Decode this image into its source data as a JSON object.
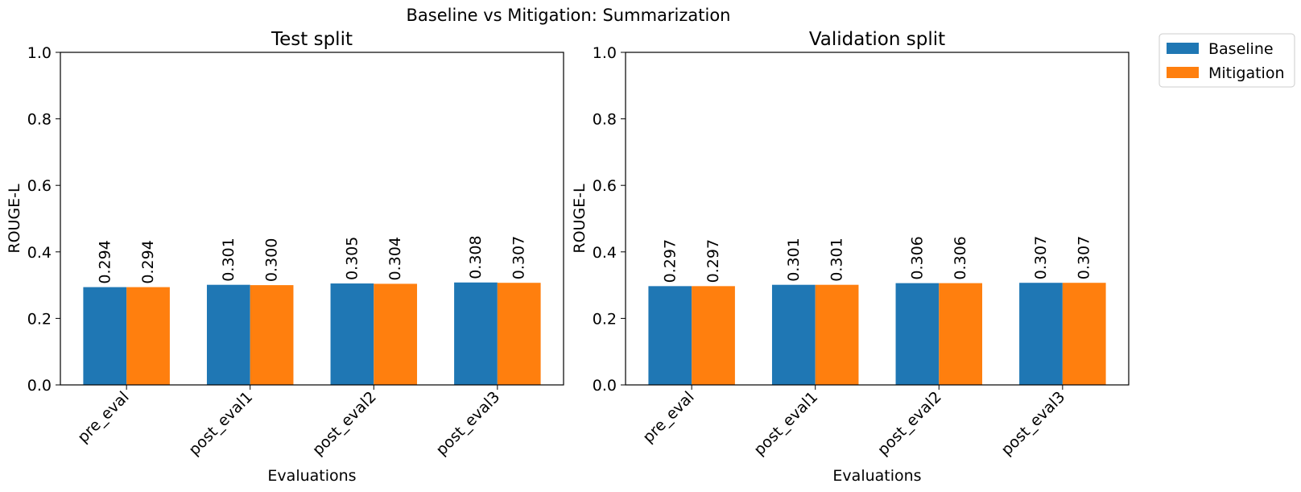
{
  "figure_title": "Baseline vs Mitigation: Summarization",
  "legend": {
    "placement": "top-right, outside plot area",
    "entries": [
      {
        "label": "Baseline",
        "color": "#1f77b4"
      },
      {
        "label": "Mitigation",
        "color": "#ff7f0e"
      }
    ]
  },
  "chart_data": [
    {
      "type": "bar",
      "title": "Test split",
      "xlabel": "Evaluations",
      "ylabel": "ROUGE-L",
      "ylim": [
        0,
        1.0
      ],
      "yticks": [
        "0.0",
        "0.2",
        "0.4",
        "0.6",
        "0.8",
        "1.0"
      ],
      "grid": false,
      "categories": [
        "pre_eval",
        "post_eval1",
        "post_eval2",
        "post_eval3"
      ],
      "series": [
        {
          "name": "Baseline",
          "color": "#1f77b4",
          "values": [
            0.294,
            0.301,
            0.305,
            0.308
          ],
          "labels": [
            "0.294",
            "0.301",
            "0.305",
            "0.308"
          ]
        },
        {
          "name": "Mitigation",
          "color": "#ff7f0e",
          "values": [
            0.294,
            0.3,
            0.304,
            0.307
          ],
          "labels": [
            "0.294",
            "0.300",
            "0.304",
            "0.307"
          ]
        }
      ]
    },
    {
      "type": "bar",
      "title": "Validation split",
      "xlabel": "Evaluations",
      "ylabel": "ROUGE-L",
      "ylim": [
        0,
        1.0
      ],
      "yticks": [
        "0.0",
        "0.2",
        "0.4",
        "0.6",
        "0.8",
        "1.0"
      ],
      "grid": false,
      "categories": [
        "pre_eval",
        "post_eval1",
        "post_eval2",
        "post_eval3"
      ],
      "series": [
        {
          "name": "Baseline",
          "color": "#1f77b4",
          "values": [
            0.297,
            0.301,
            0.306,
            0.307
          ],
          "labels": [
            "0.297",
            "0.301",
            "0.306",
            "0.307"
          ]
        },
        {
          "name": "Mitigation",
          "color": "#ff7f0e",
          "values": [
            0.297,
            0.301,
            0.306,
            0.307
          ],
          "labels": [
            "0.297",
            "0.301",
            "0.306",
            "0.307"
          ]
        }
      ]
    }
  ]
}
